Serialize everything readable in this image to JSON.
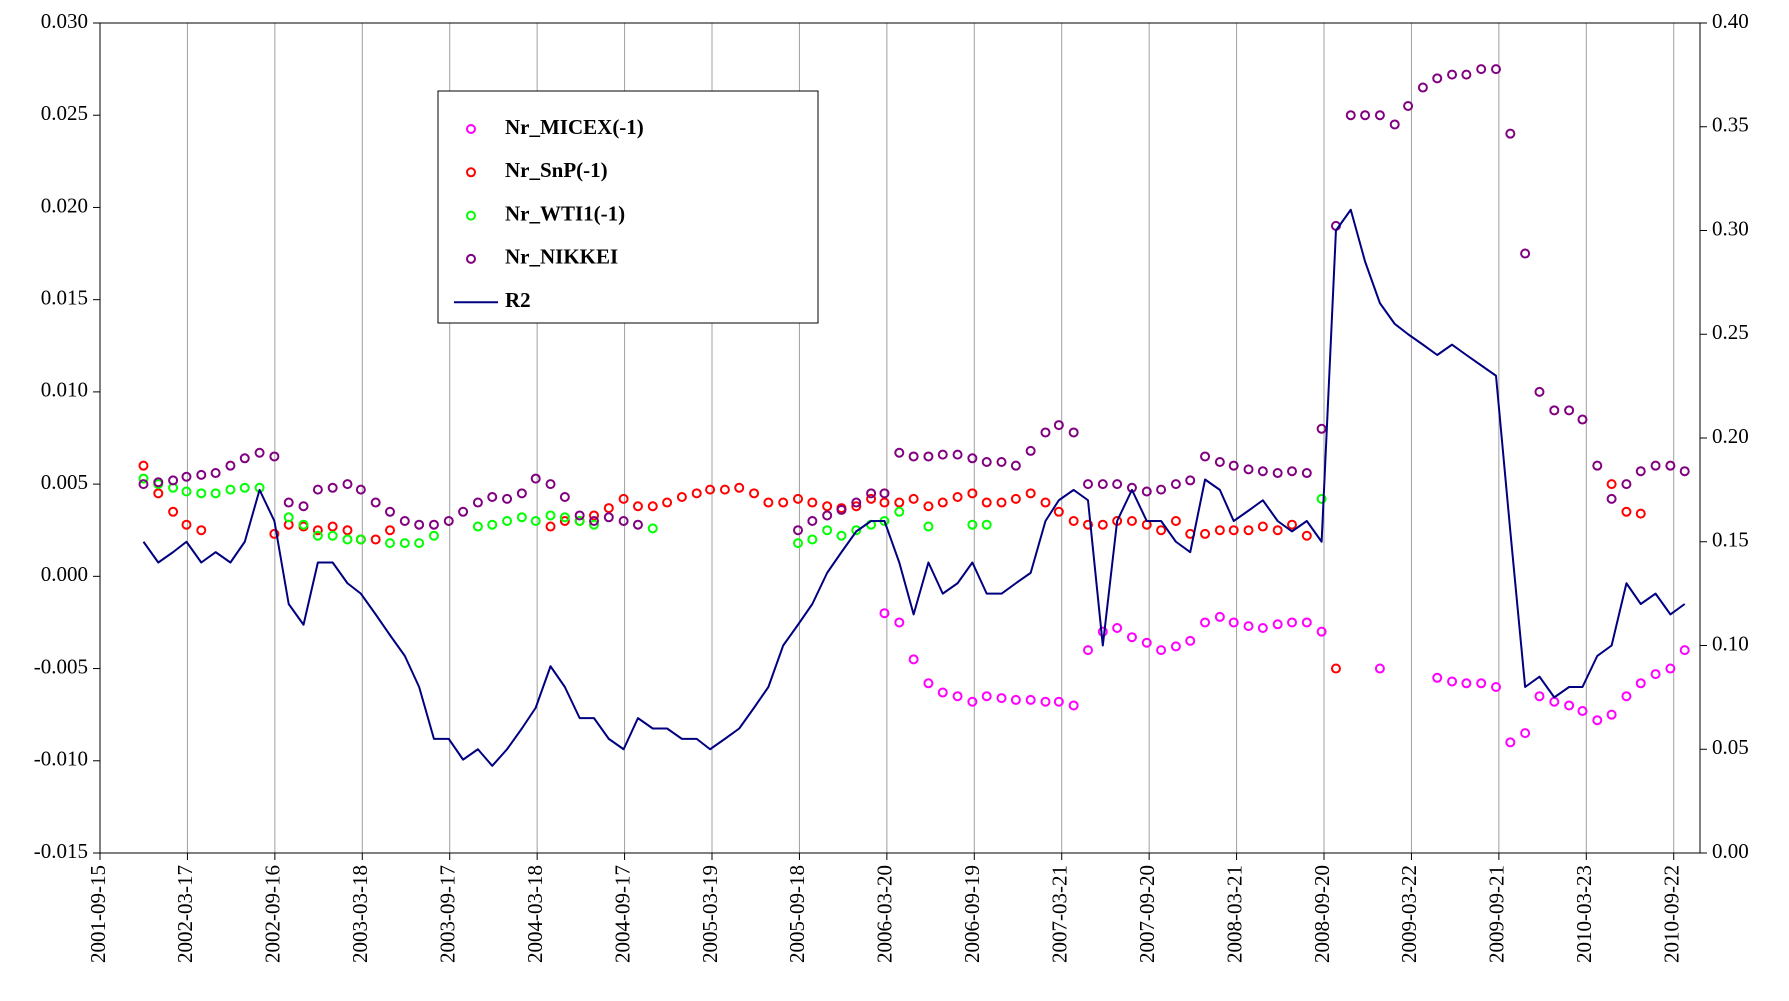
{
  "chart_data": {
    "type": "scatter",
    "x": [
      "2001-12-15",
      "2002-01-15",
      "2002-02-15",
      "2002-03-15",
      "2002-04-15",
      "2002-05-15",
      "2002-06-15",
      "2002-07-15",
      "2002-08-15",
      "2002-09-15",
      "2002-10-15",
      "2002-11-15",
      "2002-12-15",
      "2003-01-15",
      "2003-02-15",
      "2003-03-15",
      "2003-04-15",
      "2003-05-15",
      "2003-06-15",
      "2003-07-15",
      "2003-08-15",
      "2003-09-15",
      "2003-10-15",
      "2003-11-15",
      "2003-12-15",
      "2004-01-15",
      "2004-02-15",
      "2004-03-15",
      "2004-04-15",
      "2004-05-15",
      "2004-06-15",
      "2004-07-15",
      "2004-08-15",
      "2004-09-15",
      "2004-10-15",
      "2004-11-15",
      "2004-12-15",
      "2005-01-15",
      "2005-02-15",
      "2005-03-15",
      "2005-04-15",
      "2005-05-15",
      "2005-06-15",
      "2005-07-15",
      "2005-08-15",
      "2005-09-15",
      "2005-10-15",
      "2005-11-15",
      "2005-12-15",
      "2006-01-15",
      "2006-02-15",
      "2006-03-15",
      "2006-04-15",
      "2006-05-15",
      "2006-06-15",
      "2006-07-15",
      "2006-08-15",
      "2006-09-15",
      "2006-10-15",
      "2006-11-15",
      "2006-12-15",
      "2007-01-15",
      "2007-02-15",
      "2007-03-15",
      "2007-04-15",
      "2007-05-15",
      "2007-06-15",
      "2007-07-15",
      "2007-08-15",
      "2007-09-15",
      "2007-10-15",
      "2007-11-15",
      "2007-12-15",
      "2008-01-15",
      "2008-02-15",
      "2008-03-15",
      "2008-04-15",
      "2008-05-15",
      "2008-06-15",
      "2008-07-15",
      "2008-08-15",
      "2008-09-15",
      "2008-10-15",
      "2008-11-15",
      "2008-12-15",
      "2009-01-15",
      "2009-02-15",
      "2009-03-15",
      "2009-04-15",
      "2009-05-15",
      "2009-06-15",
      "2009-07-15",
      "2009-08-15",
      "2009-09-15",
      "2009-10-15",
      "2009-11-15",
      "2009-12-15",
      "2010-01-15",
      "2010-02-15",
      "2010-03-15",
      "2010-04-15",
      "2010-05-15",
      "2010-06-15",
      "2010-07-15",
      "2010-08-15",
      "2010-09-15",
      "2010-10-15"
    ],
    "series": [
      {
        "name": "Nr_MICEX(-1)",
        "color": "#ff00ff",
        "type": "scatter",
        "values": [
          null,
          null,
          null,
          null,
          null,
          null,
          null,
          null,
          null,
          null,
          null,
          null,
          null,
          null,
          null,
          null,
          null,
          null,
          null,
          null,
          null,
          null,
          null,
          null,
          null,
          null,
          null,
          null,
          null,
          null,
          null,
          null,
          null,
          null,
          null,
          null,
          null,
          null,
          null,
          null,
          null,
          null,
          null,
          null,
          null,
          null,
          null,
          null,
          null,
          null,
          null,
          -0.002,
          -0.0025,
          -0.0045,
          -0.0058,
          -0.0063,
          -0.0065,
          -0.0068,
          -0.0065,
          -0.0066,
          -0.0067,
          -0.0067,
          -0.0068,
          -0.0068,
          -0.007,
          -0.004,
          -0.003,
          -0.0028,
          -0.0033,
          -0.0036,
          -0.004,
          -0.0038,
          -0.0035,
          -0.0025,
          -0.0022,
          -0.0025,
          -0.0027,
          -0.0028,
          -0.0026,
          -0.0025,
          -0.0025,
          -0.003,
          null,
          null,
          null,
          -0.005,
          null,
          null,
          null,
          -0.0055,
          -0.0057,
          -0.0058,
          -0.0058,
          -0.006,
          -0.009,
          -0.0085,
          -0.0065,
          -0.0068,
          -0.007,
          -0.0073,
          -0.0078,
          -0.0075,
          -0.0065,
          -0.0058,
          -0.0053,
          -0.005,
          -0.004
        ]
      },
      {
        "name": "Nr_SnP(-1)",
        "color": "#ff0000",
        "type": "scatter",
        "values": [
          0.006,
          0.0045,
          0.0035,
          0.0028,
          0.0025,
          null,
          null,
          null,
          null,
          0.0023,
          0.0028,
          0.0027,
          0.0025,
          0.0027,
          0.0025,
          0.002,
          0.002,
          0.0025,
          null,
          null,
          null,
          null,
          null,
          null,
          null,
          null,
          null,
          null,
          0.0027,
          0.003,
          0.003,
          0.0033,
          0.0037,
          0.0042,
          0.0038,
          0.0038,
          0.004,
          0.0043,
          0.0045,
          0.0047,
          0.0047,
          0.0048,
          0.0045,
          0.004,
          0.004,
          0.0042,
          0.004,
          0.0038,
          0.0037,
          0.0038,
          0.0042,
          0.004,
          0.004,
          0.0042,
          0.0038,
          0.004,
          0.0043,
          0.0045,
          0.004,
          0.004,
          0.0042,
          0.0045,
          0.004,
          0.0035,
          0.003,
          0.0028,
          0.0028,
          0.003,
          0.003,
          0.0028,
          0.0025,
          0.003,
          0.0023,
          0.0023,
          0.0025,
          0.0025,
          0.0025,
          0.0027,
          0.0025,
          0.0028,
          0.0022,
          null,
          -0.005,
          null,
          null,
          null,
          null,
          null,
          null,
          null,
          null,
          null,
          null,
          null,
          null,
          null,
          null,
          null,
          null,
          null,
          null,
          0.005,
          0.0035,
          0.0034,
          null,
          null,
          null
        ]
      },
      {
        "name": "Nr_WTI1(-1)",
        "color": "#00ff00",
        "type": "scatter",
        "values": [
          0.0053,
          0.005,
          0.0048,
          0.0046,
          0.0045,
          0.0045,
          0.0047,
          0.0048,
          0.0048,
          null,
          0.0032,
          0.0028,
          0.0022,
          0.0022,
          0.002,
          0.002,
          null,
          0.0018,
          0.0018,
          0.0018,
          0.0022,
          null,
          null,
          0.0027,
          0.0028,
          0.003,
          0.0032,
          0.003,
          0.0033,
          0.0032,
          0.003,
          0.0028,
          null,
          null,
          null,
          0.0026,
          null,
          null,
          null,
          null,
          null,
          null,
          null,
          null,
          null,
          0.0018,
          0.002,
          0.0025,
          0.0022,
          0.0025,
          0.0028,
          0.003,
          0.0035,
          null,
          0.0027,
          null,
          null,
          0.0028,
          0.0028,
          null,
          null,
          null,
          null,
          null,
          null,
          null,
          null,
          null,
          null,
          null,
          null,
          null,
          null,
          null,
          null,
          null,
          null,
          null,
          null,
          null,
          null,
          0.0042,
          null,
          null,
          null,
          null,
          null,
          null,
          null,
          null,
          null,
          null,
          null,
          null,
          null,
          null,
          null,
          null,
          null,
          null,
          null,
          null,
          null,
          null,
          null,
          null,
          null
        ]
      },
      {
        "name": "Nr_NIKKEI",
        "color": "#800080",
        "type": "scatter",
        "values": [
          0.005,
          0.0051,
          0.0052,
          0.0054,
          0.0055,
          0.0056,
          0.006,
          0.0064,
          0.0067,
          0.0065,
          0.004,
          0.0038,
          0.0047,
          0.0048,
          0.005,
          0.0047,
          0.004,
          0.0035,
          0.003,
          0.0028,
          0.0028,
          0.003,
          0.0035,
          0.004,
          0.0043,
          0.0042,
          0.0045,
          0.0053,
          0.005,
          0.0043,
          0.0033,
          0.003,
          0.0032,
          0.003,
          0.0028,
          null,
          null,
          null,
          null,
          null,
          null,
          null,
          null,
          null,
          null,
          0.0025,
          0.003,
          0.0033,
          0.0036,
          0.004,
          0.0045,
          0.0045,
          0.0067,
          0.0065,
          0.0065,
          0.0066,
          0.0066,
          0.0064,
          0.0062,
          0.0062,
          0.006,
          0.0068,
          0.0078,
          0.0082,
          0.0078,
          0.005,
          0.005,
          0.005,
          0.0048,
          0.0046,
          0.0047,
          0.005,
          0.0052,
          0.0065,
          0.0062,
          0.006,
          0.0058,
          0.0057,
          0.0056,
          0.0057,
          0.0056,
          0.008,
          0.019,
          0.025,
          0.025,
          0.025,
          0.0245,
          0.0255,
          0.0265,
          0.027,
          0.0272,
          0.0272,
          0.0275,
          0.0275,
          0.024,
          0.0175,
          0.01,
          0.009,
          0.009,
          0.0085,
          0.006,
          0.0042,
          0.005,
          0.0057,
          0.006,
          0.006,
          0.0057
        ]
      },
      {
        "name": "R2",
        "color": "#000080",
        "type": "line",
        "axis": "y2",
        "values": [
          0.15,
          0.14,
          0.145,
          0.15,
          0.14,
          0.145,
          0.14,
          0.15,
          0.175,
          0.16,
          0.12,
          0.11,
          0.14,
          0.14,
          0.13,
          0.125,
          0.115,
          0.105,
          0.095,
          0.08,
          0.055,
          0.055,
          0.045,
          0.05,
          0.042,
          0.05,
          0.06,
          0.07,
          0.09,
          0.08,
          0.065,
          0.065,
          0.055,
          0.05,
          0.065,
          0.06,
          0.06,
          0.055,
          0.055,
          0.05,
          0.055,
          0.06,
          0.07,
          0.08,
          0.1,
          0.11,
          0.12,
          0.135,
          0.145,
          0.155,
          0.16,
          0.16,
          0.14,
          0.115,
          0.14,
          0.125,
          0.13,
          0.14,
          0.125,
          0.125,
          0.13,
          0.135,
          0.16,
          0.17,
          0.175,
          0.17,
          0.1,
          0.16,
          0.175,
          0.16,
          0.16,
          0.15,
          0.145,
          0.18,
          0.175,
          0.16,
          0.165,
          0.17,
          0.16,
          0.155,
          0.16,
          0.15,
          0.3,
          0.31,
          0.285,
          0.265,
          0.255,
          0.25,
          0.245,
          0.24,
          0.245,
          0.24,
          0.235,
          0.23,
          0.155,
          0.08,
          0.085,
          0.075,
          0.08,
          0.08,
          0.095,
          0.1,
          0.13,
          0.12,
          0.125,
          0.115,
          0.12
        ]
      }
    ],
    "xlim": [
      "2001-09-15",
      "2010-11-16"
    ],
    "xticks": [
      "2001-09-15",
      "2002-03-17",
      "2002-09-16",
      "2003-03-18",
      "2003-09-17",
      "2004-03-18",
      "2004-09-17",
      "2005-03-19",
      "2005-09-18",
      "2006-03-20",
      "2006-09-19",
      "2007-03-21",
      "2007-09-20",
      "2008-03-21",
      "2008-09-20",
      "2009-03-22",
      "2009-09-21",
      "2010-03-23",
      "2010-09-22"
    ],
    "ylim": [
      -0.015,
      0.03
    ],
    "yticks": [
      {
        "value": -0.015,
        "label": "-0.015"
      },
      {
        "value": -0.01,
        "label": "-0.010"
      },
      {
        "value": -0.005,
        "label": "-0.005"
      },
      {
        "value": 0,
        "label": "0.000"
      },
      {
        "value": 0.005,
        "label": "0.005"
      },
      {
        "value": 0.01,
        "label": "0.010"
      },
      {
        "value": 0.015,
        "label": "0.015"
      },
      {
        "value": 0.02,
        "label": "0.020"
      },
      {
        "value": 0.025,
        "label": "0.025"
      },
      {
        "value": 0.03,
        "label": "0.030"
      }
    ],
    "y2lim": [
      0,
      0.4
    ],
    "y2ticks": [
      {
        "value": 0,
        "label": "0.00"
      },
      {
        "value": 0.05,
        "label": "0.05"
      },
      {
        "value": 0.1,
        "label": "0.10"
      },
      {
        "value": 0.15,
        "label": "0.15"
      },
      {
        "value": 0.2,
        "label": "0.20"
      },
      {
        "value": 0.25,
        "label": "0.25"
      },
      {
        "value": 0.3,
        "label": "0.30"
      },
      {
        "value": 0.35,
        "label": "0.35"
      },
      {
        "value": 0.4,
        "label": "0.40"
      }
    ],
    "grid": "x"
  }
}
